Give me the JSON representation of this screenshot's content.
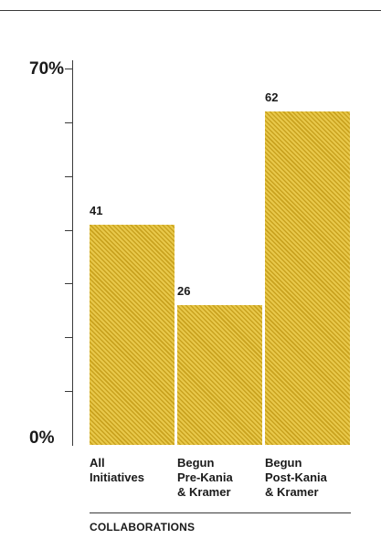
{
  "chart_data": {
    "type": "bar",
    "categories": [
      "All\nInitiatives",
      "Begun\nPre-Kania\n& Kramer",
      "Begun\nPost-Kania\n& Kramer"
    ],
    "values": [
      41,
      26,
      62
    ],
    "value_labels": [
      "41",
      "26",
      "62"
    ],
    "title": "",
    "xlabel": "COLLABORATIONS",
    "ylabel": "",
    "ylim": [
      0,
      70
    ],
    "y_tick_labels": [
      "0%",
      "70%"
    ],
    "grid": false,
    "legend": "none",
    "bar_color": "#e8c84a",
    "bar_hatch_color": "#c9a21f",
    "hatch": "diagonal-stripes"
  }
}
